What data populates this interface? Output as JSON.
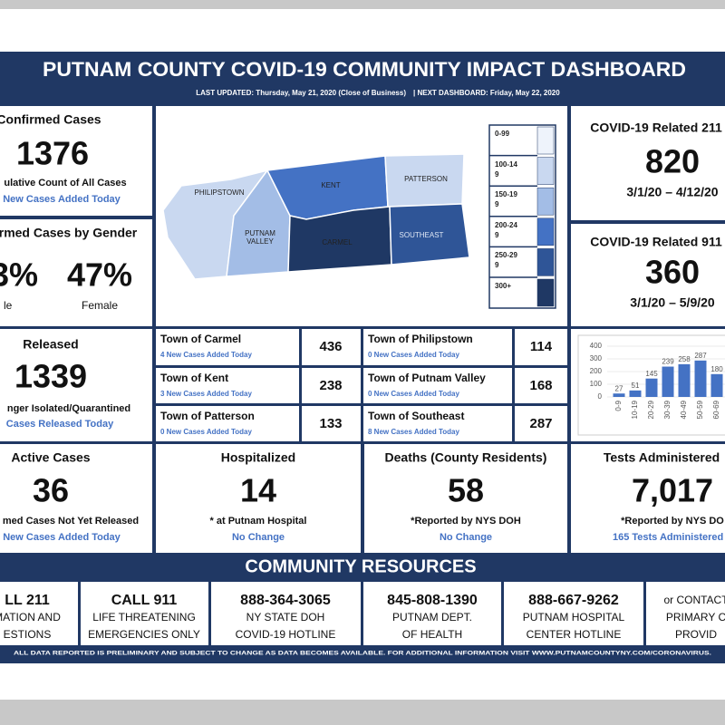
{
  "header": {
    "title": "PUTNAM COUNTY COVID-19 COMMUNITY IMPACT DASHBOARD",
    "last_updated": "LAST UPDATED:  Thursday, May 21, 2020 (Close of Business)",
    "next_dashboard": "|  NEXT DASHBOARD:  Friday, May 22, 2020"
  },
  "confirmed": {
    "title": "Confirmed Cases",
    "value": 1376,
    "caption": "ulative Count of All Cases",
    "note": "New Cases Added Today"
  },
  "gender": {
    "title": "rmed Cases by Gender",
    "male_value": "3%",
    "male_label": "le",
    "female_value": "47%",
    "female_label": "Female"
  },
  "calls_211": {
    "title": "COVID-19 Related 211",
    "value": 820,
    "range": "3/1/20 – 4/12/20"
  },
  "calls_911": {
    "title": "COVID-19 Related 911",
    "value": 360,
    "range": "3/1/20 – 5/9/20"
  },
  "map": {
    "regions": [
      {
        "label": "PHILIPSTOWN",
        "color": "#c9d8f0"
      },
      {
        "label": "PUTNAM VALLEY",
        "color": "#a3bde6"
      },
      {
        "label": "KENT",
        "color": "#4472c4"
      },
      {
        "label": "PATTERSON",
        "color": "#c9d8f0"
      },
      {
        "label": "CARMEL",
        "color": "#1f3864"
      },
      {
        "label": "SOUTHEAST",
        "color": "#2f5597"
      }
    ],
    "legend": [
      {
        "label": "0-99",
        "color": "#eef3fb"
      },
      {
        "label": "100-149",
        "color": "#c9d8f0"
      },
      {
        "label": "150-199",
        "color": "#a3bde6"
      },
      {
        "label": "200-249",
        "color": "#4472c4"
      },
      {
        "label": "250-299",
        "color": "#2f5597"
      },
      {
        "label": "300+",
        "color": "#1f3864"
      }
    ]
  },
  "released": {
    "title": "Released",
    "value": 1339,
    "caption": "nger Isolated/Quarantined",
    "note": "Cases Released Today"
  },
  "towns": [
    {
      "name": "Town of Carmel",
      "note": "4 New Cases Added Today",
      "value": 436
    },
    {
      "name": "Town of Philipstown",
      "note": "0 New Cases Added Today",
      "value": 114
    },
    {
      "name": "Town of Kent",
      "note": "3 New Cases Added Today",
      "value": 238
    },
    {
      "name": "Town of Putnam Valley",
      "note": "0 New Cases Added Today",
      "value": 168
    },
    {
      "name": "Town of Patterson",
      "note": "0 New Cases Added Today",
      "value": 133
    },
    {
      "name": "Town of Southeast",
      "note": "8 New Cases Added Today",
      "value": 287
    }
  ],
  "age_chart": {
    "type": "bar",
    "categories": [
      "0-9",
      "10-19",
      "20-29",
      "30-39",
      "40-49",
      "50-59",
      "60-69"
    ],
    "values": [
      27,
      51,
      145,
      239,
      258,
      287,
      180
    ],
    "color": "#4472c4",
    "ylim": [
      0,
      400
    ],
    "yticks": [
      0,
      100,
      200,
      300,
      400
    ]
  },
  "stats": [
    {
      "title": "Active Cases",
      "value": 36,
      "caption": "med Cases Not Yet Released",
      "note": "New Cases Added Today"
    },
    {
      "title": "Hospitalized",
      "value": 14,
      "caption": "* at Putnam Hospital",
      "note": "No Change"
    },
    {
      "title": "Deaths (County Residents)",
      "value": 58,
      "caption": "*Reported by NYS DOH",
      "note": "No Change"
    },
    {
      "title": "Tests Administered",
      "value": "7,017",
      "caption": "*Reported by NYS DO",
      "note": "165 Tests Administered T"
    }
  ],
  "resources": {
    "title": "COMMUNITY RESOURCES",
    "items": [
      [
        "LL 211",
        "MATION AND",
        "ESTIONS"
      ],
      [
        "CALL 911",
        "LIFE THREATENING",
        "EMERGENCIES ONLY"
      ],
      [
        "888-364-3065",
        "NY STATE DOH",
        "COVID-19 HOTLINE"
      ],
      [
        "845-808-1390",
        "PUTNAM DEPT.",
        "OF HEALTH"
      ],
      [
        "888-667-9262",
        "PUTNAM HOSPITAL",
        "CENTER HOTLINE"
      ],
      [
        "or CONTACT",
        "PRIMARY C",
        "PROVID"
      ]
    ]
  },
  "footer": "ALL DATA REPORTED IS PRELIMINARY AND SUBJECT TO CHANGE AS DATA BECOMES AVAILABLE. FOR ADDITIONAL INFORMATION VISIT WWW.PUTNAMCOUNTYNY.COM/CORONAVIRUS."
}
